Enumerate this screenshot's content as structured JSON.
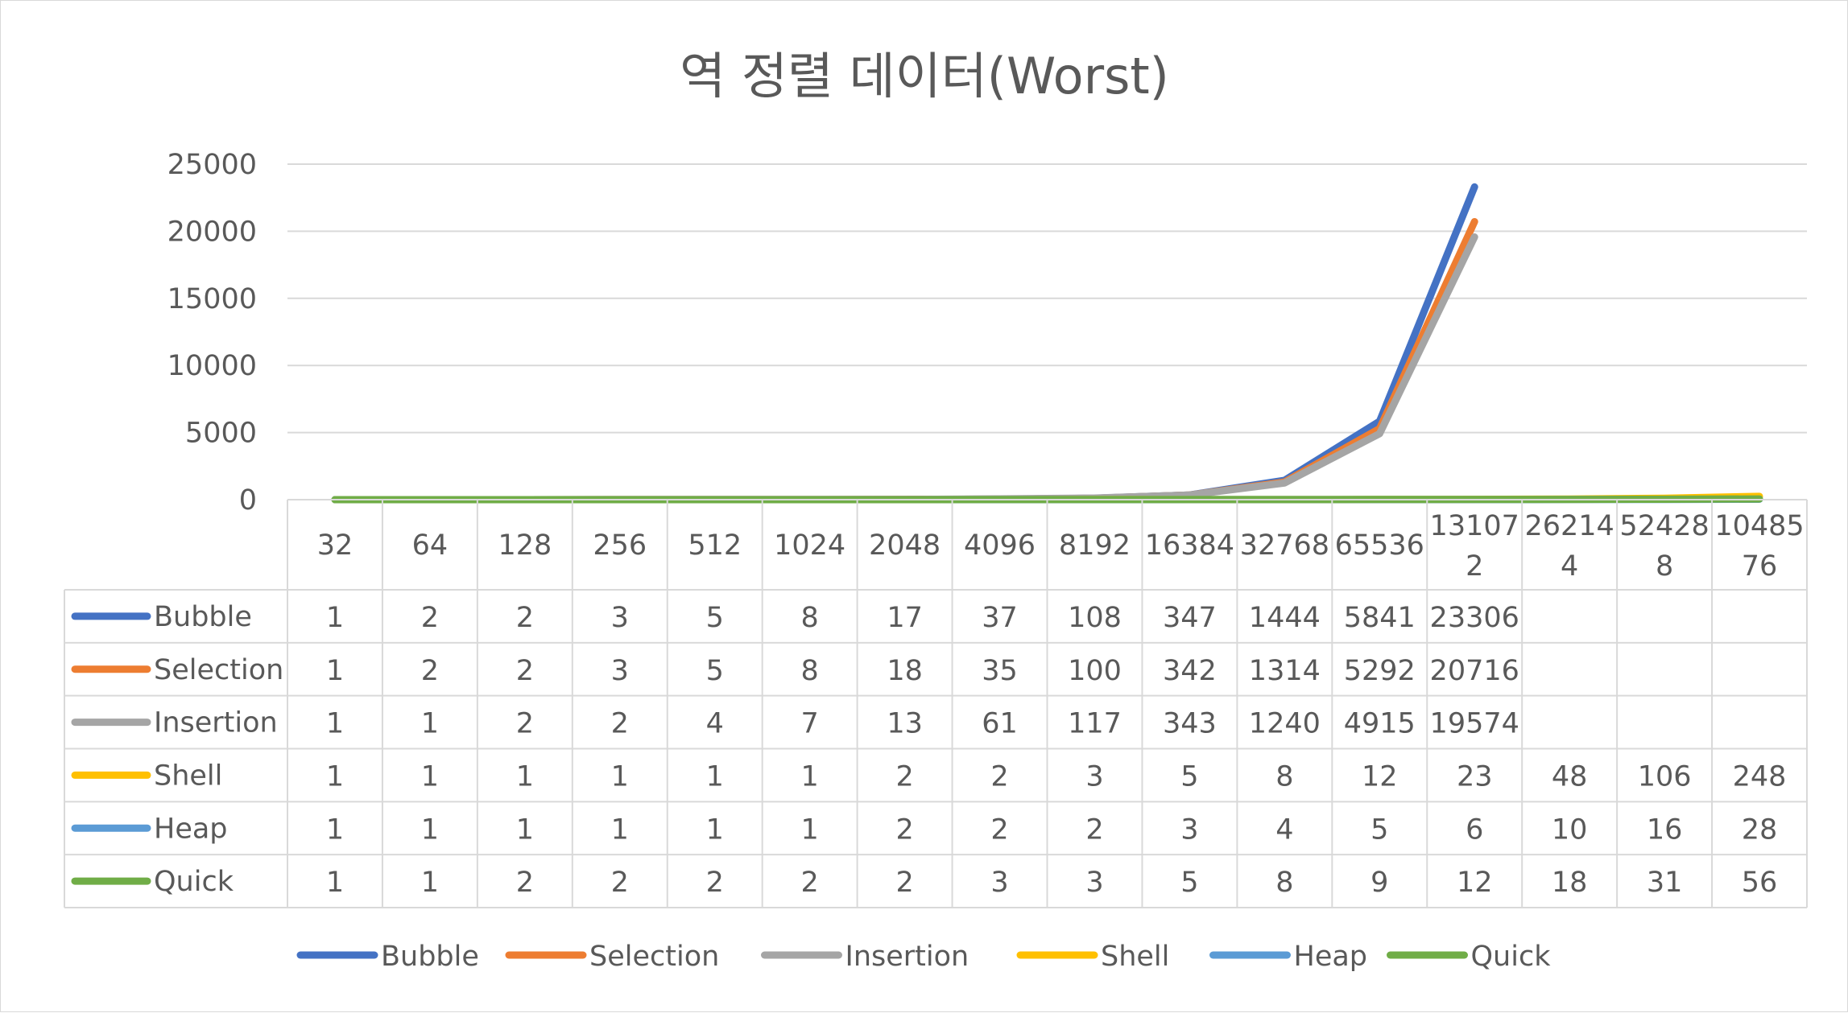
{
  "chart_data": {
    "type": "line",
    "title": "역 정렬 데이터(Worst)",
    "xlabel": "",
    "ylabel": "",
    "ylim": [
      0,
      25000
    ],
    "yticks": [
      0,
      5000,
      10000,
      15000,
      20000,
      25000
    ],
    "grid": true,
    "legend": "bottom",
    "data_table": true,
    "categories": [
      "32",
      "64",
      "128",
      "256",
      "512",
      "1024",
      "2048",
      "4096",
      "8192",
      "16384",
      "32768",
      "65536",
      "131072",
      "262144",
      "524288",
      "1048576"
    ],
    "series": [
      {
        "name": "Bubble",
        "color": "#4472c4",
        "values": [
          1,
          2,
          2,
          3,
          5,
          8,
          17,
          37,
          108,
          347,
          1444,
          5841,
          23306,
          null,
          null,
          null
        ]
      },
      {
        "name": "Selection",
        "color": "#ed7d31",
        "values": [
          1,
          2,
          2,
          3,
          5,
          8,
          18,
          35,
          100,
          342,
          1314,
          5292,
          20716,
          null,
          null,
          null
        ]
      },
      {
        "name": "Insertion",
        "color": "#a5a5a5",
        "values": [
          1,
          1,
          2,
          2,
          4,
          7,
          13,
          61,
          117,
          343,
          1240,
          4915,
          19574,
          null,
          null,
          null
        ]
      },
      {
        "name": "Shell",
        "color": "#ffc000",
        "values": [
          1,
          1,
          1,
          1,
          1,
          1,
          2,
          2,
          3,
          5,
          8,
          12,
          23,
          48,
          106,
          248
        ]
      },
      {
        "name": "Heap",
        "color": "#5b9bd5",
        "values": [
          1,
          1,
          1,
          1,
          1,
          1,
          2,
          2,
          2,
          3,
          4,
          5,
          6,
          10,
          16,
          28
        ]
      },
      {
        "name": "Quick",
        "color": "#70ad47",
        "values": [
          1,
          1,
          2,
          2,
          2,
          2,
          2,
          3,
          3,
          5,
          8,
          9,
          12,
          18,
          31,
          56
        ]
      }
    ]
  }
}
